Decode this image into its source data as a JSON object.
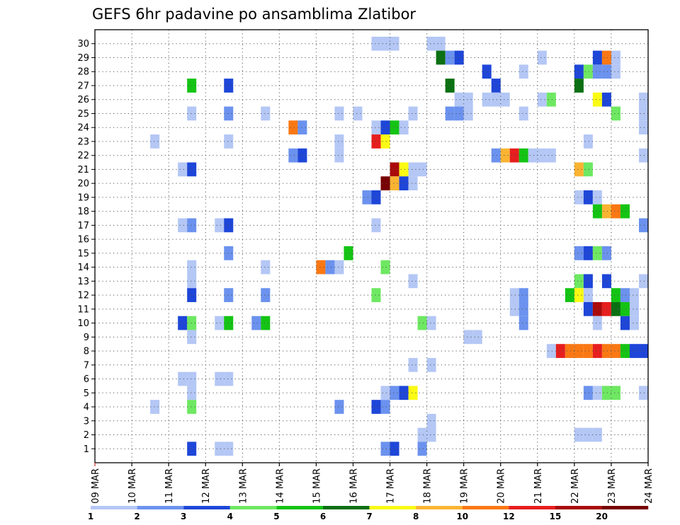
{
  "chart_data": {
    "type": "heatmap",
    "title": "GEFS 6hr padavine po ansamblima Zlatibor",
    "xlabel": "",
    "ylabel": "",
    "x_tick_labels": [
      "09 MAR",
      "10 MAR",
      "11 MAR",
      "12 MAR",
      "13 MAR",
      "14 MAR",
      "15 MAR",
      "16 MAR",
      "17 MAR",
      "18 MAR",
      "19 MAR",
      "20 MAR",
      "21 MAR",
      "22 MAR",
      "23 MAR",
      "24 MAR"
    ],
    "y_tick_labels": [
      "1",
      "2",
      "3",
      "4",
      "5",
      "6",
      "7",
      "8",
      "9",
      "10",
      "11",
      "12",
      "13",
      "14",
      "15",
      "16",
      "17",
      "18",
      "19",
      "20",
      "21",
      "22",
      "23",
      "24",
      "25",
      "26",
      "27",
      "28",
      "29",
      "30"
    ],
    "x_range_steps": [
      0,
      60
    ],
    "y_range_members": [
      0,
      30
    ],
    "legend_labels": [
      "1",
      "2",
      "3",
      "4",
      "5",
      "6",
      "7",
      "8",
      "10",
      "12",
      "15",
      "20"
    ],
    "legend_colors": [
      "#b4c7f5",
      "#6b92ee",
      "#1e46d8",
      "#6ee862",
      "#14c414",
      "#0a7012",
      "#fafa14",
      "#fab432",
      "#fa7814",
      "#e61e1e",
      "#aa0a0a",
      "#780000"
    ],
    "colors": {
      "c1": "#b4c7f5",
      "c2": "#6b92ee",
      "c3": "#1e46d8",
      "c4": "#6ee862",
      "c5": "#14c414",
      "c6": "#0a7012",
      "c7": "#fafa14",
      "c8": "#fab432",
      "c10": "#fa7814",
      "c12": "#e61e1e",
      "c15": "#aa0a0a",
      "c20": "#780000"
    },
    "cells": [
      {
        "member": 30,
        "cells": [
          [
            30,
            1
          ],
          [
            31,
            1
          ],
          [
            32,
            1
          ],
          [
            36,
            1
          ],
          [
            37,
            1
          ]
        ]
      },
      {
        "member": 29,
        "cells": [
          [
            37,
            6
          ],
          [
            38,
            2
          ],
          [
            39,
            3
          ],
          [
            48,
            1
          ],
          [
            54,
            3
          ],
          [
            55,
            10
          ],
          [
            56,
            1
          ]
        ]
      },
      {
        "member": 28,
        "cells": [
          [
            42,
            3
          ],
          [
            46,
            1
          ],
          [
            52,
            3
          ],
          [
            53,
            4
          ],
          [
            54,
            2
          ],
          [
            55,
            2
          ],
          [
            56,
            1
          ]
        ]
      },
      {
        "member": 27,
        "cells": [
          [
            10,
            5
          ],
          [
            14,
            3
          ],
          [
            38,
            6
          ],
          [
            43,
            3
          ],
          [
            52,
            6
          ]
        ]
      },
      {
        "member": 26,
        "cells": [
          [
            39,
            1
          ],
          [
            40,
            1
          ],
          [
            42,
            1
          ],
          [
            43,
            1
          ],
          [
            44,
            1
          ],
          [
            48,
            1
          ],
          [
            49,
            4
          ],
          [
            54,
            7
          ],
          [
            55,
            3
          ],
          [
            59,
            1
          ]
        ]
      },
      {
        "member": 25,
        "cells": [
          [
            10,
            1
          ],
          [
            14,
            2
          ],
          [
            18,
            1
          ],
          [
            26,
            1
          ],
          [
            28,
            1
          ],
          [
            34,
            1
          ],
          [
            38,
            2
          ],
          [
            39,
            2
          ],
          [
            40,
            1
          ],
          [
            46,
            1
          ],
          [
            56,
            4
          ],
          [
            59,
            1
          ]
        ]
      },
      {
        "member": 24,
        "cells": [
          [
            21,
            10
          ],
          [
            22,
            2
          ],
          [
            30,
            1
          ],
          [
            31,
            3
          ],
          [
            32,
            5
          ],
          [
            33,
            1
          ],
          [
            59,
            1
          ]
        ]
      },
      {
        "member": 23,
        "cells": [
          [
            6,
            1
          ],
          [
            14,
            1
          ],
          [
            26,
            1
          ],
          [
            30,
            12
          ],
          [
            31,
            7
          ],
          [
            53,
            1
          ]
        ]
      },
      {
        "member": 22,
        "cells": [
          [
            21,
            2
          ],
          [
            22,
            3
          ],
          [
            26,
            1
          ],
          [
            43,
            2
          ],
          [
            44,
            8
          ],
          [
            45,
            12
          ],
          [
            46,
            5
          ],
          [
            47,
            1
          ],
          [
            48,
            1
          ],
          [
            49,
            1
          ],
          [
            59,
            1
          ]
        ]
      },
      {
        "member": 21,
        "cells": [
          [
            9,
            1
          ],
          [
            10,
            3
          ],
          [
            32,
            15
          ],
          [
            33,
            7
          ],
          [
            34,
            1
          ],
          [
            35,
            1
          ],
          [
            52,
            8
          ],
          [
            53,
            4
          ]
        ]
      },
      {
        "member": 20,
        "cells": [
          [
            31,
            20
          ],
          [
            32,
            8
          ],
          [
            33,
            3
          ],
          [
            34,
            1
          ]
        ]
      },
      {
        "member": 19,
        "cells": [
          [
            29,
            2
          ],
          [
            30,
            3
          ],
          [
            52,
            1
          ],
          [
            53,
            3
          ],
          [
            54,
            1
          ]
        ]
      },
      {
        "member": 18,
        "cells": [
          [
            54,
            5
          ],
          [
            55,
            8
          ],
          [
            56,
            10
          ],
          [
            57,
            5
          ]
        ]
      },
      {
        "member": 17,
        "cells": [
          [
            9,
            1
          ],
          [
            10,
            2
          ],
          [
            13,
            1
          ],
          [
            14,
            3
          ],
          [
            30,
            1
          ],
          [
            59,
            2
          ]
        ]
      },
      {
        "member": 15,
        "cells": [
          [
            14,
            2
          ],
          [
            27,
            5
          ],
          [
            52,
            2
          ],
          [
            53,
            3
          ],
          [
            54,
            4
          ],
          [
            55,
            2
          ]
        ]
      },
      {
        "member": 14,
        "cells": [
          [
            10,
            1
          ],
          [
            18,
            1
          ],
          [
            24,
            10
          ],
          [
            25,
            2
          ],
          [
            26,
            1
          ],
          [
            31,
            4
          ]
        ]
      },
      {
        "member": 13,
        "cells": [
          [
            10,
            1
          ],
          [
            34,
            1
          ],
          [
            52,
            4
          ],
          [
            53,
            3
          ],
          [
            55,
            3
          ],
          [
            59,
            1
          ]
        ]
      },
      {
        "member": 12,
        "cells": [
          [
            10,
            3
          ],
          [
            14,
            2
          ],
          [
            18,
            2
          ],
          [
            30,
            4
          ],
          [
            45,
            1
          ],
          [
            46,
            2
          ],
          [
            51,
            5
          ],
          [
            52,
            7
          ],
          [
            53,
            1
          ],
          [
            56,
            5
          ],
          [
            57,
            2
          ],
          [
            58,
            1
          ]
        ]
      },
      {
        "member": 11,
        "cells": [
          [
            45,
            1
          ],
          [
            46,
            2
          ],
          [
            53,
            3
          ],
          [
            54,
            15
          ],
          [
            55,
            12
          ],
          [
            56,
            6
          ],
          [
            57,
            5
          ],
          [
            58,
            1
          ]
        ]
      },
      {
        "member": 10,
        "cells": [
          [
            9,
            3
          ],
          [
            10,
            4
          ],
          [
            13,
            1
          ],
          [
            14,
            5
          ],
          [
            17,
            2
          ],
          [
            18,
            5
          ],
          [
            35,
            4
          ],
          [
            36,
            1
          ],
          [
            46,
            2
          ],
          [
            54,
            1
          ],
          [
            57,
            3
          ],
          [
            58,
            1
          ]
        ]
      },
      {
        "member": 9,
        "cells": [
          [
            10,
            1
          ],
          [
            40,
            1
          ],
          [
            41,
            1
          ]
        ]
      },
      {
        "member": 8,
        "cells": [
          [
            49,
            1
          ],
          [
            50,
            12
          ],
          [
            51,
            10
          ],
          [
            52,
            10
          ],
          [
            53,
            10
          ],
          [
            54,
            12
          ],
          [
            55,
            10
          ],
          [
            56,
            10
          ],
          [
            57,
            5
          ],
          [
            58,
            3
          ],
          [
            59,
            3
          ]
        ]
      },
      {
        "member": 7,
        "cells": [
          [
            34,
            1
          ],
          [
            36,
            1
          ]
        ]
      },
      {
        "member": 6,
        "cells": [
          [
            9,
            1
          ],
          [
            10,
            1
          ],
          [
            13,
            1
          ],
          [
            14,
            1
          ]
        ]
      },
      {
        "member": 5,
        "cells": [
          [
            10,
            1
          ],
          [
            31,
            1
          ],
          [
            32,
            2
          ],
          [
            33,
            3
          ],
          [
            34,
            7
          ],
          [
            53,
            2
          ],
          [
            54,
            1
          ],
          [
            55,
            4
          ],
          [
            56,
            4
          ],
          [
            59,
            1
          ]
        ]
      },
      {
        "member": 4,
        "cells": [
          [
            6,
            1
          ],
          [
            10,
            4
          ],
          [
            26,
            2
          ],
          [
            30,
            3
          ],
          [
            31,
            2
          ]
        ]
      },
      {
        "member": 3,
        "cells": [
          [
            36,
            1
          ]
        ]
      },
      {
        "member": 2,
        "cells": [
          [
            35,
            1
          ],
          [
            36,
            1
          ],
          [
            52,
            1
          ],
          [
            53,
            1
          ],
          [
            54,
            1
          ]
        ]
      },
      {
        "member": 1,
        "cells": [
          [
            10,
            3
          ],
          [
            13,
            1
          ],
          [
            14,
            1
          ],
          [
            31,
            2
          ],
          [
            32,
            3
          ],
          [
            35,
            2
          ]
        ]
      }
    ]
  }
}
